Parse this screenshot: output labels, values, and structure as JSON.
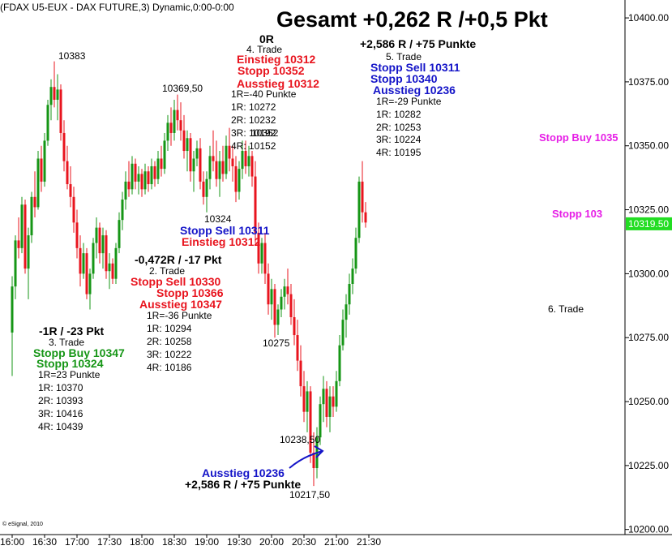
{
  "header": {
    "title": "(FDAX U5-EUX - DAX FUTURE,3) Dynamic,0:00-0:00",
    "headline": "Gesamt +0,262 R /+0,5 Pkt"
  },
  "footer": {
    "copyright": "© eSignal, 2010"
  },
  "chart_data": {
    "type": "candlestick",
    "instrument": "FDAX U5-EUX - DAX FUTURE",
    "timeframe_minutes": 3,
    "x_tick_labels": [
      "16:00",
      "16:30",
      "17:00",
      "17:30",
      "18:00",
      "18:30",
      "19:00",
      "19:30",
      "20:00",
      "20:30",
      "21:00",
      "21:30"
    ],
    "y_ticks": [
      10200.0,
      10225.0,
      10250.0,
      10275.0,
      10300.0,
      10325.0,
      10350.0,
      10375.0,
      10400.0
    ],
    "y_tick_labels": [
      "10200.00",
      "10225.00",
      "10250.00",
      "10275.00",
      "10300.00",
      "10325.00",
      "10350.00",
      "10375.00",
      "10400.00"
    ],
    "ylim": [
      10198,
      10407
    ],
    "last_price": 10319.5,
    "last_price_label": "10319.50",
    "colors": {
      "up": "#169616",
      "down": "#e8141e",
      "last_price_bg": "#22dd22"
    },
    "candles": [
      {
        "time": "16:00",
        "o": 10277,
        "h": 10299,
        "l": 10260,
        "c": 10295
      },
      {
        "time": "16:03",
        "o": 10295,
        "h": 10315,
        "l": 10290,
        "c": 10313
      },
      {
        "time": "16:06",
        "o": 10313,
        "h": 10322,
        "l": 10306,
        "c": 10310
      },
      {
        "time": "16:09",
        "o": 10310,
        "h": 10330,
        "l": 10308,
        "c": 10327
      },
      {
        "time": "16:12",
        "o": 10327,
        "h": 10329,
        "l": 10300,
        "c": 10302
      },
      {
        "time": "16:15",
        "o": 10302,
        "h": 10318,
        "l": 10290,
        "c": 10315
      },
      {
        "time": "16:18",
        "o": 10315,
        "h": 10332,
        "l": 10312,
        "c": 10330
      },
      {
        "time": "16:21",
        "o": 10330,
        "h": 10340,
        "l": 10322,
        "c": 10326
      },
      {
        "time": "16:24",
        "o": 10326,
        "h": 10348,
        "l": 10325,
        "c": 10345
      },
      {
        "time": "16:27",
        "o": 10345,
        "h": 10350,
        "l": 10332,
        "c": 10336
      },
      {
        "time": "16:30",
        "o": 10336,
        "h": 10355,
        "l": 10334,
        "c": 10352
      },
      {
        "time": "16:33",
        "o": 10352,
        "h": 10368,
        "l": 10350,
        "c": 10366
      },
      {
        "time": "16:36",
        "o": 10366,
        "h": 10376,
        "l": 10360,
        "c": 10373
      },
      {
        "time": "16:39",
        "o": 10373,
        "h": 10383,
        "l": 10365,
        "c": 10368
      },
      {
        "time": "16:42",
        "o": 10368,
        "h": 10378,
        "l": 10360,
        "c": 10372
      },
      {
        "time": "16:45",
        "o": 10372,
        "h": 10374,
        "l": 10352,
        "c": 10355
      },
      {
        "time": "16:48",
        "o": 10355,
        "h": 10360,
        "l": 10340,
        "c": 10344
      },
      {
        "time": "16:51",
        "o": 10344,
        "h": 10350,
        "l": 10333,
        "c": 10335
      },
      {
        "time": "16:54",
        "o": 10335,
        "h": 10342,
        "l": 10326,
        "c": 10330
      },
      {
        "time": "16:57",
        "o": 10330,
        "h": 10334,
        "l": 10316,
        "c": 10320
      },
      {
        "time": "17:00",
        "o": 10320,
        "h": 10325,
        "l": 10306,
        "c": 10310
      },
      {
        "time": "17:03",
        "o": 10310,
        "h": 10315,
        "l": 10295,
        "c": 10300
      },
      {
        "time": "17:06",
        "o": 10300,
        "h": 10312,
        "l": 10298,
        "c": 10308
      },
      {
        "time": "17:09",
        "o": 10308,
        "h": 10310,
        "l": 10290,
        "c": 10292
      },
      {
        "time": "17:12",
        "o": 10292,
        "h": 10302,
        "l": 10286,
        "c": 10300
      },
      {
        "time": "17:15",
        "o": 10300,
        "h": 10314,
        "l": 10298,
        "c": 10312
      },
      {
        "time": "17:18",
        "o": 10312,
        "h": 10322,
        "l": 10306,
        "c": 10318
      },
      {
        "time": "17:21",
        "o": 10318,
        "h": 10320,
        "l": 10304,
        "c": 10308
      },
      {
        "time": "17:24",
        "o": 10308,
        "h": 10318,
        "l": 10302,
        "c": 10315
      },
      {
        "time": "17:27",
        "o": 10315,
        "h": 10317,
        "l": 10298,
        "c": 10301
      },
      {
        "time": "17:30",
        "o": 10301,
        "h": 10308,
        "l": 10294,
        "c": 10304
      },
      {
        "time": "17:33",
        "o": 10304,
        "h": 10306,
        "l": 10296,
        "c": 10298
      },
      {
        "time": "17:36",
        "o": 10298,
        "h": 10312,
        "l": 10296,
        "c": 10310
      },
      {
        "time": "17:39",
        "o": 10310,
        "h": 10324,
        "l": 10308,
        "c": 10321
      },
      {
        "time": "17:42",
        "o": 10321,
        "h": 10332,
        "l": 10317,
        "c": 10329
      },
      {
        "time": "17:45",
        "o": 10329,
        "h": 10340,
        "l": 10325,
        "c": 10336
      },
      {
        "time": "17:48",
        "o": 10336,
        "h": 10344,
        "l": 10330,
        "c": 10333
      },
      {
        "time": "17:51",
        "o": 10333,
        "h": 10346,
        "l": 10331,
        "c": 10343
      },
      {
        "time": "17:54",
        "o": 10343,
        "h": 10345,
        "l": 10333,
        "c": 10336
      },
      {
        "time": "17:57",
        "o": 10336,
        "h": 10342,
        "l": 10331,
        "c": 10339
      },
      {
        "time": "18:00",
        "o": 10339,
        "h": 10341,
        "l": 10330,
        "c": 10333
      },
      {
        "time": "18:03",
        "o": 10333,
        "h": 10343,
        "l": 10331,
        "c": 10340
      },
      {
        "time": "18:06",
        "o": 10340,
        "h": 10342,
        "l": 10332,
        "c": 10335
      },
      {
        "time": "18:09",
        "o": 10335,
        "h": 10345,
        "l": 10333,
        "c": 10342
      },
      {
        "time": "18:12",
        "o": 10342,
        "h": 10344,
        "l": 10334,
        "c": 10337
      },
      {
        "time": "18:15",
        "o": 10337,
        "h": 10348,
        "l": 10335,
        "c": 10345
      },
      {
        "time": "18:18",
        "o": 10345,
        "h": 10350,
        "l": 10338,
        "c": 10341
      },
      {
        "time": "18:21",
        "o": 10341,
        "h": 10355,
        "l": 10339,
        "c": 10352
      },
      {
        "time": "18:24",
        "o": 10352,
        "h": 10362,
        "l": 10348,
        "c": 10359
      },
      {
        "time": "18:27",
        "o": 10359,
        "h": 10365,
        "l": 10350,
        "c": 10355
      },
      {
        "time": "18:30",
        "o": 10355,
        "h": 10368,
        "l": 10352,
        "c": 10364
      },
      {
        "time": "18:33",
        "o": 10364,
        "h": 10370,
        "l": 10356,
        "c": 10360
      },
      {
        "time": "18:36",
        "o": 10360,
        "h": 10367,
        "l": 10352,
        "c": 10356
      },
      {
        "time": "18:39",
        "o": 10356,
        "h": 10362,
        "l": 10345,
        "c": 10348
      },
      {
        "time": "18:42",
        "o": 10348,
        "h": 10356,
        "l": 10340,
        "c": 10353
      },
      {
        "time": "18:45",
        "o": 10353,
        "h": 10355,
        "l": 10336,
        "c": 10340
      },
      {
        "time": "18:48",
        "o": 10340,
        "h": 10348,
        "l": 10332,
        "c": 10345
      },
      {
        "time": "18:51",
        "o": 10345,
        "h": 10352,
        "l": 10342,
        "c": 10349
      },
      {
        "time": "18:54",
        "o": 10349,
        "h": 10353,
        "l": 10333,
        "c": 10336
      },
      {
        "time": "18:57",
        "o": 10336,
        "h": 10340,
        "l": 10327,
        "c": 10330
      },
      {
        "time": "19:00",
        "o": 10330,
        "h": 10340,
        "l": 10324,
        "c": 10337
      },
      {
        "time": "19:03",
        "o": 10337,
        "h": 10350,
        "l": 10333,
        "c": 10346
      },
      {
        "time": "19:06",
        "o": 10346,
        "h": 10356,
        "l": 10340,
        "c": 10344
      },
      {
        "time": "19:09",
        "o": 10344,
        "h": 10352,
        "l": 10334,
        "c": 10337
      },
      {
        "time": "19:12",
        "o": 10337,
        "h": 10348,
        "l": 10330,
        "c": 10344
      },
      {
        "time": "19:15",
        "o": 10344,
        "h": 10350,
        "l": 10336,
        "c": 10339
      },
      {
        "time": "19:18",
        "o": 10339,
        "h": 10354,
        "l": 10337,
        "c": 10350
      },
      {
        "time": "19:21",
        "o": 10350,
        "h": 10357,
        "l": 10340,
        "c": 10345
      },
      {
        "time": "19:24",
        "o": 10345,
        "h": 10350,
        "l": 10336,
        "c": 10342
      },
      {
        "time": "19:27",
        "o": 10342,
        "h": 10346,
        "l": 10328,
        "c": 10332
      },
      {
        "time": "19:30",
        "o": 10332,
        "h": 10344,
        "l": 10329,
        "c": 10341
      },
      {
        "time": "19:33",
        "o": 10341,
        "h": 10352,
        "l": 10337,
        "c": 10348
      },
      {
        "time": "19:36",
        "o": 10348,
        "h": 10352,
        "l": 10339,
        "c": 10342
      },
      {
        "time": "19:39",
        "o": 10342,
        "h": 10350,
        "l": 10338,
        "c": 10346
      },
      {
        "time": "19:42",
        "o": 10346,
        "h": 10348,
        "l": 10334,
        "c": 10338
      },
      {
        "time": "19:45",
        "o": 10338,
        "h": 10344,
        "l": 10312,
        "c": 10316
      },
      {
        "time": "19:48",
        "o": 10316,
        "h": 10320,
        "l": 10300,
        "c": 10304
      },
      {
        "time": "19:51",
        "o": 10304,
        "h": 10314,
        "l": 10300,
        "c": 10312
      },
      {
        "time": "19:54",
        "o": 10312,
        "h": 10316,
        "l": 10296,
        "c": 10300
      },
      {
        "time": "19:57",
        "o": 10300,
        "h": 10304,
        "l": 10284,
        "c": 10288
      },
      {
        "time": "20:00",
        "o": 10288,
        "h": 10298,
        "l": 10282,
        "c": 10294
      },
      {
        "time": "20:03",
        "o": 10294,
        "h": 10296,
        "l": 10275,
        "c": 10280
      },
      {
        "time": "20:06",
        "o": 10280,
        "h": 10288,
        "l": 10276,
        "c": 10286
      },
      {
        "time": "20:09",
        "o": 10286,
        "h": 10294,
        "l": 10283,
        "c": 10291
      },
      {
        "time": "20:12",
        "o": 10291,
        "h": 10298,
        "l": 10286,
        "c": 10295
      },
      {
        "time": "20:15",
        "o": 10295,
        "h": 10302,
        "l": 10288,
        "c": 10292
      },
      {
        "time": "20:18",
        "o": 10292,
        "h": 10296,
        "l": 10280,
        "c": 10283
      },
      {
        "time": "20:21",
        "o": 10283,
        "h": 10290,
        "l": 10272,
        "c": 10276
      },
      {
        "time": "20:24",
        "o": 10276,
        "h": 10282,
        "l": 10262,
        "c": 10266
      },
      {
        "time": "20:27",
        "o": 10266,
        "h": 10272,
        "l": 10252,
        "c": 10256
      },
      {
        "time": "20:30",
        "o": 10256,
        "h": 10262,
        "l": 10242,
        "c": 10246
      },
      {
        "time": "20:33",
        "o": 10246,
        "h": 10258,
        "l": 10238,
        "c": 10254
      },
      {
        "time": "20:36",
        "o": 10254,
        "h": 10256,
        "l": 10226,
        "c": 10230
      },
      {
        "time": "20:39",
        "o": 10230,
        "h": 10238,
        "l": 10217,
        "c": 10224
      },
      {
        "time": "20:42",
        "o": 10224,
        "h": 10240,
        "l": 10220,
        "c": 10236
      },
      {
        "time": "20:45",
        "o": 10236,
        "h": 10252,
        "l": 10233,
        "c": 10249
      },
      {
        "time": "20:48",
        "o": 10249,
        "h": 10260,
        "l": 10242,
        "c": 10255
      },
      {
        "time": "20:51",
        "o": 10255,
        "h": 10258,
        "l": 10240,
        "c": 10244
      },
      {
        "time": "20:54",
        "o": 10244,
        "h": 10256,
        "l": 10238,
        "c": 10252
      },
      {
        "time": "20:57",
        "o": 10252,
        "h": 10256,
        "l": 10244,
        "c": 10248
      },
      {
        "time": "21:00",
        "o": 10248,
        "h": 10262,
        "l": 10246,
        "c": 10258
      },
      {
        "time": "21:03",
        "o": 10258,
        "h": 10276,
        "l": 10256,
        "c": 10272
      },
      {
        "time": "21:06",
        "o": 10272,
        "h": 10286,
        "l": 10270,
        "c": 10282
      },
      {
        "time": "21:09",
        "o": 10282,
        "h": 10292,
        "l": 10275,
        "c": 10288
      },
      {
        "time": "21:12",
        "o": 10288,
        "h": 10300,
        "l": 10284,
        "c": 10296
      },
      {
        "time": "21:15",
        "o": 10296,
        "h": 10306,
        "l": 10292,
        "c": 10302
      },
      {
        "time": "21:18",
        "o": 10302,
        "h": 10318,
        "l": 10300,
        "c": 10314
      },
      {
        "time": "21:21",
        "o": 10314,
        "h": 10338,
        "l": 10312,
        "c": 10336
      },
      {
        "time": "21:24",
        "o": 10336,
        "h": 10344,
        "l": 10320,
        "c": 10324
      },
      {
        "time": "21:27",
        "o": 10324,
        "h": 10328,
        "l": 10318,
        "c": 10320
      }
    ]
  },
  "annotations": {
    "h10383": "10383",
    "h10369": "10369,50",
    "l10324": "10324",
    "l10275": "10275",
    "l10238": "10238,50",
    "l10217": "10217,50",
    "t1": {
      "result": "-1R / -23 Pkt",
      "label": "3. Trade",
      "entry": "Stopp Buy 10347",
      "stop": "Stopp 10324",
      "r": "1R=23 Punkte",
      "r1": "1R: 10370",
      "r2": "2R: 10393",
      "r3": "3R: 10416",
      "r4": "4R: 10439"
    },
    "t2": {
      "result": "-0,472R / -17 Pkt",
      "label": "2. Trade",
      "entry": "Stopp Sell 10330",
      "stop": "Stopp 10366",
      "exit": "Ausstieg 10347",
      "r": "1R=-36 Punkte",
      "r1": "1R: 10294",
      "r2": "2R: 10258",
      "r3": "3R: 10222",
      "r4": "4R: 10186"
    },
    "t4": {
      "result": "0R",
      "label": "4. Trade",
      "entry": "Einstieg 10312",
      "stop": "Stopp 10352",
      "exit": "Ausstieg 10312",
      "r": "1R=-40 Punkte",
      "r1": "1R: 10272",
      "r2": "2R: 10232",
      "r3": "3R: 10192",
      "r3_overlap": "10352",
      "r4": "4R: 10152",
      "sell": "Stopp Sell 10311",
      "sell_entry": "Einstieg 10312"
    },
    "t5": {
      "result": "+2,586 R / +75 Punkte",
      "label": "5. Trade",
      "entry": "Stopp Sell 10311",
      "stop": "Stopp 10340",
      "exit": "Ausstieg 10236",
      "r": "1R=-29 Punkte",
      "r1": "1R: 10282",
      "r2": "2R: 10253",
      "r3": "3R: 10224",
      "r4": "4R: 10195",
      "exit_bottom": "Ausstieg 10236",
      "result_bottom": "+2,586 R / +75 Punkte"
    },
    "t6": {
      "label": "6. Trade",
      "buy": "Stopp Buy 1035",
      "stop": "Stopp 103"
    }
  }
}
